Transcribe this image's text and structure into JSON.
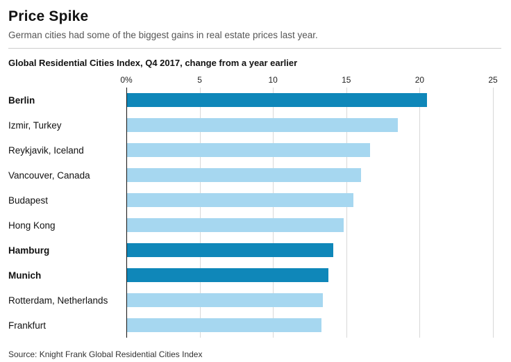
{
  "header": {
    "title": "Price Spike",
    "subtitle": "German cities had some of the biggest gains in real estate prices last year."
  },
  "chart_data": {
    "type": "bar",
    "orientation": "horizontal",
    "title": "Global Residential Cities Index, Q4 2017, change from a year earlier",
    "xlabel": "",
    "ylabel": "",
    "xlim": [
      0,
      25
    ],
    "grid": "vertical",
    "x_ticks": [
      {
        "label": "0%",
        "value": 0
      },
      {
        "label": "5",
        "value": 5
      },
      {
        "label": "10",
        "value": 10
      },
      {
        "label": "15",
        "value": 15
      },
      {
        "label": "20",
        "value": 20
      },
      {
        "label": "25",
        "value": 25
      }
    ],
    "categories": [
      "Berlin",
      "Izmir, Turkey",
      "Reykjavik, Iceland",
      "Vancouver, Canada",
      "Budapest",
      "Hong Kong",
      "Hamburg",
      "Munich",
      "Rotterdam, Netherlands",
      "Frankfurt"
    ],
    "values": [
      20.5,
      18.5,
      16.6,
      16.0,
      15.5,
      14.8,
      14.1,
      13.8,
      13.4,
      13.3
    ],
    "highlighted": [
      true,
      false,
      false,
      false,
      false,
      false,
      true,
      true,
      false,
      false
    ],
    "colors": {
      "highlight": "#0f87b9",
      "normal": "#a6d7f0",
      "gridline": "#d8d8d8",
      "zero_axis": "#111111"
    }
  },
  "source": "Source: Knight Frank Global Residential Cities Index"
}
